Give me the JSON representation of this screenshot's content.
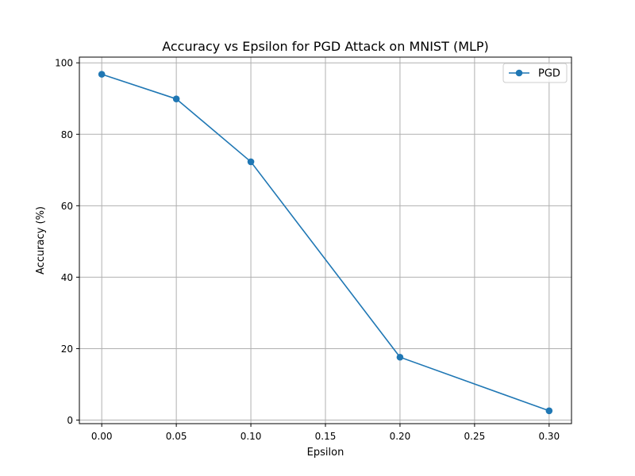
{
  "chart_data": {
    "type": "line",
    "title": "Accuracy vs Epsilon for PGD Attack on MNIST (MLP)",
    "xlabel": "Epsilon",
    "ylabel": "Accuracy (%)",
    "xlim": [
      -0.015,
      0.315
    ],
    "ylim": [
      -1.0,
      101.6
    ],
    "xticks": [
      0.0,
      0.05,
      0.1,
      0.15,
      0.2,
      0.25,
      0.3
    ],
    "xtick_labels": [
      "0.00",
      "0.05",
      "0.10",
      "0.15",
      "0.20",
      "0.25",
      "0.30"
    ],
    "yticks": [
      0,
      20,
      40,
      60,
      80,
      100
    ],
    "ytick_labels": [
      "0",
      "20",
      "40",
      "60",
      "80",
      "100"
    ],
    "grid": true,
    "legend_position": "top-right",
    "series": [
      {
        "name": "PGD",
        "color": "#1f77b4",
        "marker": "circle",
        "x": [
          0.0,
          0.05,
          0.1,
          0.2,
          0.3
        ],
        "y": [
          96.8,
          89.9,
          72.3,
          17.6,
          2.6
        ]
      }
    ]
  }
}
